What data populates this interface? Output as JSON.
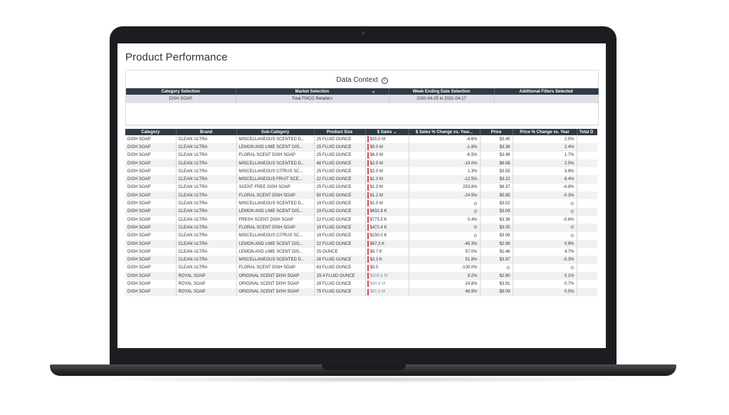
{
  "page": {
    "title": "Product Performance"
  },
  "context": {
    "heading": "Data Context",
    "headers": [
      "Category Selection",
      "Market Selection",
      "Week Ending Date Selection",
      "Additional Filters Selected"
    ],
    "values": [
      "DISH SOAP",
      "Total FMCG Retailers",
      "2020-04-25 to 2021-04-17",
      ""
    ]
  },
  "table": {
    "columns": [
      "Category",
      "Brand",
      "Sub-Category",
      "Product Size",
      "$ Sales",
      "$ Sales % Change vs. Year...",
      "Price",
      "Price % Change vs. Year",
      "Total D"
    ],
    "rows": [
      {
        "category": "DISH SOAP",
        "brand": "CLEAN ULTRA",
        "subcategory": "MISCELLANEOUS SCENTED D...",
        "size": "25 FLUID OUNCE",
        "sales": "$15.0 M",
        "sales_change": "-4.6%",
        "price": "$3.45",
        "price_change": "2.5%"
      },
      {
        "category": "DISH SOAP",
        "brand": "CLEAN ULTRA",
        "subcategory": "LEMON AND LIME SCENT DIS...",
        "size": "25 FLUID OUNCE",
        "sales": "$9.0 M",
        "sales_change": "-1.8%",
        "price": "$3.38",
        "price_change": "2.4%"
      },
      {
        "category": "DISH SOAP",
        "brand": "CLEAN ULTRA",
        "subcategory": "FLORAL SCENT DISH SOAP",
        "size": "25 FLUID OUNCE",
        "sales": "$6.0 M",
        "sales_change": "-6.5%",
        "price": "$3.49",
        "price_change": "1.7%"
      },
      {
        "category": "DISH SOAP",
        "brand": "CLEAN ULTRA",
        "subcategory": "MISCELLANEOUS SCENTED D...",
        "size": "48 FLUID OUNCE",
        "sales": "$2.5 M",
        "sales_change": "-10.0%",
        "price": "$6.08",
        "price_change": "2.5%"
      },
      {
        "category": "DISH SOAP",
        "brand": "CLEAN ULTRA",
        "subcategory": "MISCELLANEOUS CITRUS SC...",
        "size": "25 FLUID OUNCE",
        "sales": "$2.0 M",
        "sales_change": "1.3%",
        "price": "$3.55",
        "price_change": "3.9%"
      },
      {
        "category": "DISH SOAP",
        "brand": "CLEAN ULTRA",
        "subcategory": "MISCELLANEOUS FRUIT SCE...",
        "size": "22 FLUID OUNCE",
        "sales": "$1.3 M",
        "sales_change": "-12.5%",
        "price": "$3.22",
        "price_change": "8.4%"
      },
      {
        "category": "DISH SOAP",
        "brand": "CLEAN ULTRA",
        "subcategory": "SCENT FREE DISH SOAP",
        "size": "25 FLUID OUNCE",
        "sales": "$1.3 M",
        "sales_change": "253.8%",
        "price": "$8.37",
        "price_change": "-4.8%"
      },
      {
        "category": "DISH SOAP",
        "brand": "CLEAN ULTRA",
        "subcategory": "FLORAL SCENT DISH SOAP",
        "size": "50 FLUID OUNCE",
        "sales": "$1.2 M",
        "sales_change": "-24.5%",
        "price": "$5.85",
        "price_change": "-0.3%"
      },
      {
        "category": "DISH SOAP",
        "brand": "CLEAN ULTRA",
        "subcategory": "MISCELLANEOUS SCENTED D...",
        "size": "19 FLUID OUNCE",
        "sales": "$1.0 M",
        "sales_change": "∅",
        "price": "$3.02",
        "price_change": "∅"
      },
      {
        "category": "DISH SOAP",
        "brand": "CLEAN ULTRA",
        "subcategory": "LEMON AND LIME SCENT DIS...",
        "size": "19 FLUID OUNCE",
        "sales": "$832.8 K",
        "sales_change": "∅",
        "price": "$3.09",
        "price_change": "∅"
      },
      {
        "category": "DISH SOAP",
        "brand": "CLEAN ULTRA",
        "subcategory": "FRESH SCENT DISH SOAP",
        "size": "22 FLUID OUNCE",
        "sales": "$773.5 K",
        "sales_change": "0.4%",
        "price": "$3.36",
        "price_change": "-0.6%"
      },
      {
        "category": "DISH SOAP",
        "brand": "CLEAN ULTRA",
        "subcategory": "FLORAL SCENT DISH SOAP",
        "size": "19 FLUID OUNCE",
        "sales": "$472.4 K",
        "sales_change": "∅",
        "price": "$3.05",
        "price_change": "∅"
      },
      {
        "category": "DISH SOAP",
        "brand": "CLEAN ULTRA",
        "subcategory": "MISCELLANEOUS CITRUS SC...",
        "size": "19 FLUID OUNCE",
        "sales": "$230.0 K",
        "sales_change": "∅",
        "price": "$3.08",
        "price_change": "∅"
      },
      {
        "category": "DISH SOAP",
        "brand": "CLEAN ULTRA",
        "subcategory": "LEMON AND LIME SCENT DIS...",
        "size": "22 FLUID OUNCE",
        "sales": "$67.3 K",
        "sales_change": "-45.3%",
        "price": "$2.98",
        "price_change": "0.9%"
      },
      {
        "category": "DISH SOAP",
        "brand": "CLEAN ULTRA",
        "subcategory": "LEMON AND LIME SCENT DIS...",
        "size": "25 OUNCE",
        "sales": "$5.7 K",
        "sales_change": "57.0%",
        "price": "$1.46",
        "price_change": "4.7%"
      },
      {
        "category": "DISH SOAP",
        "brand": "CLEAN ULTRA",
        "subcategory": "MISCELLANEOUS SCENTED D...",
        "size": "28 FLUID OUNCE",
        "sales": "$2.3 K",
        "sales_change": "51.8%",
        "price": "$3.97",
        "price_change": "-0.3%"
      },
      {
        "category": "DISH SOAP",
        "brand": "CLEAN ULTRA",
        "subcategory": "FLORAL SCENT DISH SOAP",
        "size": "63 FLUID OUNCE",
        "sales": "$0.0",
        "sales_change": "-100.0%",
        "price": "∅",
        "price_change": "∅"
      },
      {
        "category": "DISH SOAP",
        "brand": "ROYAL SOAP",
        "subcategory": "ORIGINAL SCENT DISH SOAP",
        "size": "19.4 FLUID OUNCE",
        "sales": "$108.6 M",
        "sales_change": "8.2%",
        "price": "$2.90",
        "price_change": "0.1%"
      },
      {
        "category": "DISH SOAP",
        "brand": "ROYAL SOAP",
        "subcategory": "ORIGINAL SCENT DISH SOAP",
        "size": "28 FLUID OUNCE",
        "sales": "$94.9 M",
        "sales_change": "24.8%",
        "price": "$3.91",
        "price_change": "0.7%"
      },
      {
        "category": "DISH SOAP",
        "brand": "ROYAL SOAP",
        "subcategory": "ORIGINAL SCENT DISH SOAP",
        "size": "75 FLUID OUNCE",
        "sales": "$81.5 M",
        "sales_change": "48.9%",
        "price": "$9.09",
        "price_change": "0.5%"
      }
    ]
  }
}
